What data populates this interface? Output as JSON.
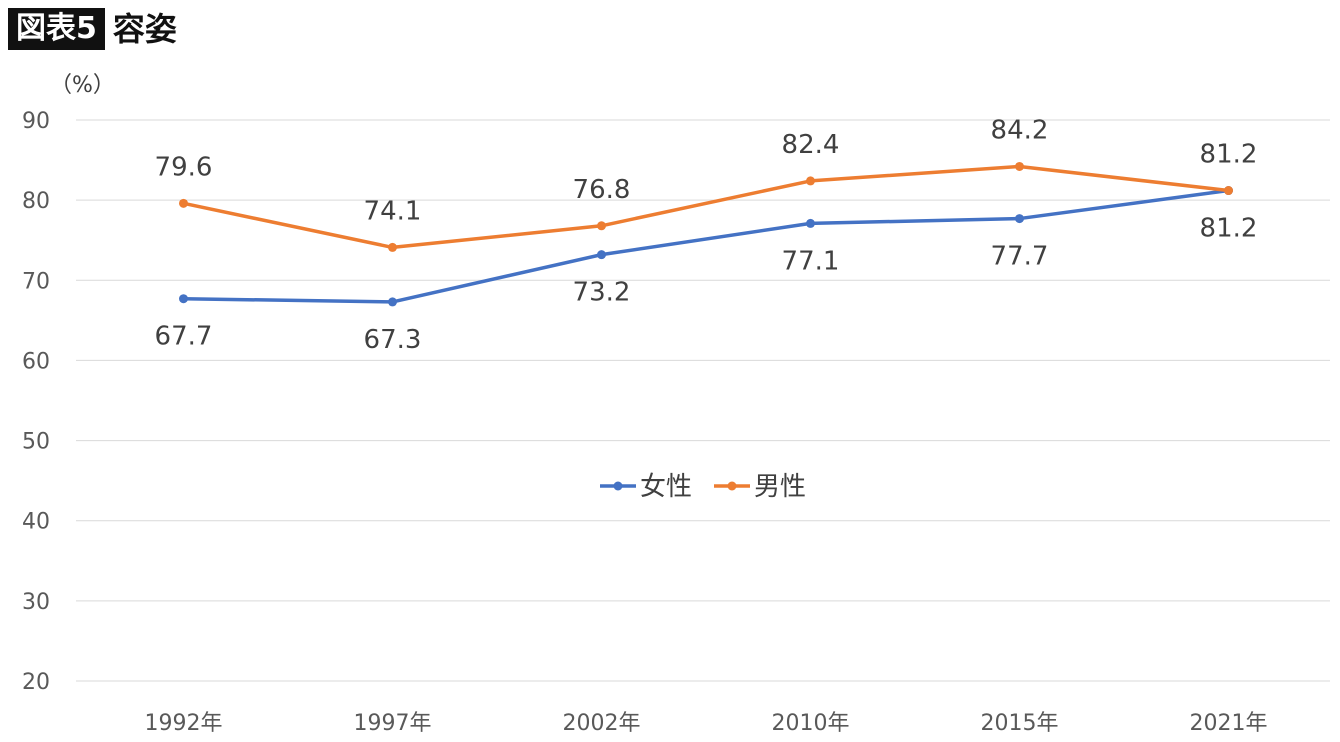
{
  "header": {
    "badge": "図表5",
    "title": "容姿"
  },
  "chart_data": {
    "type": "line",
    "categories": [
      "1992年",
      "1997年",
      "2002年",
      "2010年",
      "2015年",
      "2021年"
    ],
    "series": [
      {
        "name": "女性",
        "color": "#4472C4",
        "values": [
          67.7,
          67.3,
          73.2,
          77.1,
          77.7,
          81.2
        ]
      },
      {
        "name": "男性",
        "color": "#ED7D31",
        "values": [
          79.6,
          74.1,
          76.8,
          82.4,
          84.2,
          81.2
        ]
      }
    ],
    "ylabel": "（%）",
    "ylim": [
      20,
      90
    ],
    "yticks": [
      20,
      30,
      40,
      50,
      60,
      70,
      80,
      90
    ],
    "grid": true,
    "legend": "center",
    "data_labels": true,
    "label_positions": {
      "女性": [
        "below",
        "below",
        "below",
        "below",
        "below",
        "below"
      ],
      "男性": [
        "above",
        "above",
        "above",
        "above",
        "above",
        "above"
      ]
    }
  }
}
